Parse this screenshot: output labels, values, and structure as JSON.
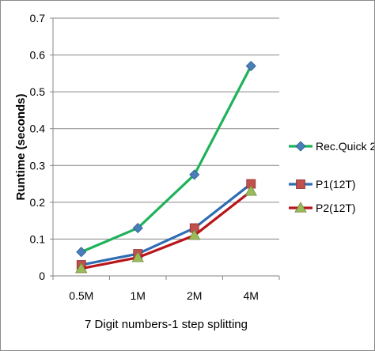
{
  "chart_data": {
    "type": "line",
    "categories": [
      "0.5M",
      "1M",
      "2M",
      "4M"
    ],
    "series": [
      {
        "name": "Rec.Quick 2",
        "values": [
          0.065,
          0.13,
          0.275,
          0.57
        ],
        "color": "#1fb25a",
        "marker": "diamond",
        "marker_color": "#4a7ebb"
      },
      {
        "name": "P1(12T)",
        "values": [
          0.03,
          0.06,
          0.13,
          0.25
        ],
        "color": "#2e6db4",
        "marker": "square",
        "marker_color": "#c0504d"
      },
      {
        "name": "P2(12T)",
        "values": [
          0.02,
          0.05,
          0.11,
          0.23
        ],
        "color": "#b8151c",
        "marker": "triangle",
        "marker_color": "#9bbb59"
      }
    ],
    "title": "",
    "xlabel": "7 Digit numbers-1 step splitting",
    "ylabel": "Runtime (seconds)",
    "ylim": [
      0,
      0.7
    ],
    "yticks": [
      "0",
      "0.1",
      "0.2",
      "0.3",
      "0.4",
      "0.5",
      "0.6",
      "0.7"
    ],
    "grid": true,
    "legend_position": "right"
  }
}
